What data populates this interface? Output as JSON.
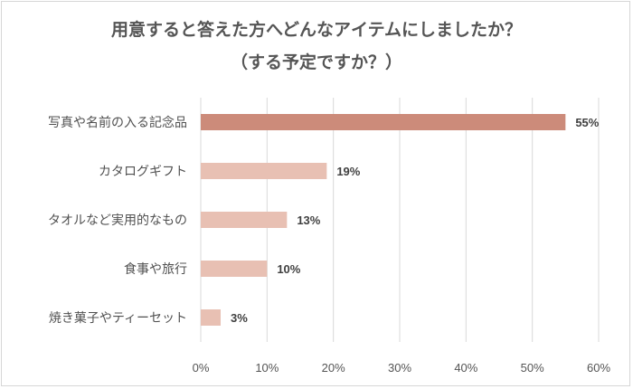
{
  "chart_data": {
    "type": "bar",
    "orientation": "horizontal",
    "title": "用意すると答えた方へどんなアイテムにしましたか？",
    "subtitle": "（する予定ですか？）",
    "categories": [
      "写真や名前の入る記念品",
      "カタログギフト",
      "タオルなど実用的なもの",
      "食事や旅行",
      "焼き菓子やティーセット"
    ],
    "values": [
      55,
      19,
      13,
      10,
      3
    ],
    "value_labels": [
      "55%",
      "19%",
      "13%",
      "10%",
      "3%"
    ],
    "bar_colors": [
      "#cc8b7a",
      "#e8c0b3",
      "#e8c0b3",
      "#e8c0b3",
      "#e8c0b3"
    ],
    "x_ticks": [
      "0%",
      "10%",
      "20%",
      "30%",
      "40%",
      "50%",
      "60%"
    ],
    "xlim": [
      0,
      60
    ],
    "grid": true,
    "legend": "none"
  }
}
